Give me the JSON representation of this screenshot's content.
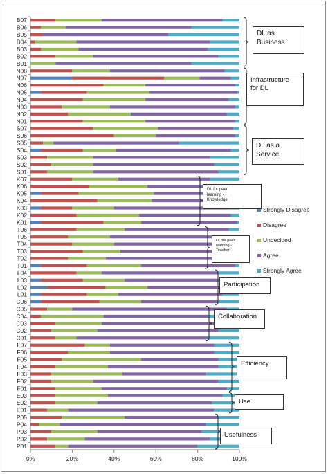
{
  "chart_data": {
    "type": "bar",
    "orientation": "horizontal",
    "stacked": true,
    "percent": true,
    "categories": [
      "B07",
      "B06",
      "B05",
      "B04",
      "B03",
      "B02",
      "B01",
      "N08",
      "N07",
      "N06",
      "N05",
      "N04",
      "N03",
      "N02",
      "N01",
      "S07",
      "S06",
      "S05",
      "S04",
      "S03",
      "S02",
      "S01",
      "K07",
      "K06",
      "K05",
      "K04",
      "K03",
      "K02",
      "K01",
      "T06",
      "T05",
      "T04",
      "T03",
      "T02",
      "T01",
      "L04",
      "L03",
      "L02",
      "L01",
      "C06",
      "C05",
      "C04",
      "C03",
      "C02",
      "C01",
      "F07",
      "F06",
      "F05",
      "F04",
      "F03",
      "F02",
      "F01",
      "E03",
      "E02",
      "E01",
      "P05",
      "P04",
      "P03",
      "P02",
      "P01"
    ],
    "series": [
      {
        "name": "Strongly Disagree",
        "color": "#4f81bd",
        "values": [
          0,
          0,
          0,
          0,
          0,
          0,
          0,
          0,
          20,
          0,
          5,
          0,
          0,
          0,
          0,
          0,
          0,
          0,
          5,
          0,
          0,
          0,
          0,
          0,
          5,
          0,
          5,
          0,
          5,
          0,
          0,
          0,
          0,
          0,
          5,
          0,
          5,
          8,
          5,
          5,
          0,
          0,
          0,
          0,
          0,
          0,
          0,
          0,
          0,
          0,
          0,
          0,
          0,
          0,
          0,
          0,
          0,
          0,
          0,
          0
        ]
      },
      {
        "name": "Disagree",
        "color": "#c0504d",
        "values": [
          12,
          5,
          6,
          2,
          5,
          12,
          0,
          20,
          44,
          35,
          22,
          25,
          15,
          18,
          25,
          30,
          40,
          6,
          20,
          8,
          10,
          8,
          20,
          28,
          18,
          32,
          15,
          22,
          30,
          22,
          18,
          20,
          25,
          18,
          22,
          22,
          20,
          28,
          22,
          28,
          8,
          5,
          12,
          10,
          12,
          26,
          18,
          15,
          12,
          10,
          10,
          12,
          12,
          12,
          8,
          15,
          4,
          10,
          8,
          12
        ]
      },
      {
        "name": "Undecided",
        "color": "#9bbb59",
        "values": [
          22,
          12,
          0,
          20,
          18,
          18,
          12,
          18,
          17,
          20,
          30,
          30,
          23,
          30,
          30,
          31,
          20,
          5,
          16,
          22,
          20,
          22,
          22,
          28,
          36,
          26,
          20,
          30,
          18,
          23,
          20,
          20,
          18,
          18,
          26,
          12,
          20,
          20,
          15,
          20,
          12,
          30,
          22,
          22,
          10,
          12,
          20,
          38,
          25,
          34,
          20,
          22,
          25,
          20,
          10,
          30,
          10,
          22,
          18,
          6
        ]
      },
      {
        "name": "Agree",
        "color": "#8064a2",
        "values": [
          58,
          60,
          60,
          64,
          62,
          60,
          65,
          55,
          15,
          43,
          42,
          40,
          60,
          46,
          43,
          36,
          38,
          60,
          55,
          56,
          58,
          60,
          44,
          38,
          38,
          36,
          55,
          44,
          46,
          50,
          57,
          58,
          52,
          60,
          45,
          56,
          45,
          35,
          50,
          37,
          74,
          50,
          60,
          58,
          63,
          50,
          50,
          37,
          53,
          40,
          60,
          60,
          55,
          55,
          70,
          45,
          70,
          50,
          60,
          62
        ]
      },
      {
        "name": "Strongly Agree",
        "color": "#4bacc6",
        "values": [
          8,
          23,
          34,
          14,
          15,
          10,
          23,
          7,
          4,
          2,
          1,
          5,
          2,
          6,
          2,
          3,
          2,
          29,
          4,
          14,
          12,
          10,
          14,
          6,
          3,
          6,
          5,
          4,
          1,
          5,
          5,
          2,
          5,
          4,
          2,
          10,
          10,
          9,
          8,
          10,
          6,
          15,
          6,
          10,
          15,
          12,
          12,
          10,
          10,
          16,
          10,
          6,
          8,
          13,
          12,
          10,
          16,
          18,
          14,
          20
        ]
      }
    ],
    "xlim": [
      0,
      100
    ],
    "xticks": [
      "0%",
      "20%",
      "40%",
      "60%",
      "80%",
      "100%"
    ],
    "legend_position": "right",
    "groups": [
      {
        "label_lines": [
          "DL as",
          "Business"
        ],
        "from": "B07",
        "to": "B01"
      },
      {
        "label_lines": [
          "Infrastructure",
          "for DL"
        ],
        "from": "N08",
        "to": "N01"
      },
      {
        "label_lines": [
          "DL as    a",
          "Service"
        ],
        "from": "S07",
        "to": "S01"
      },
      {
        "label_lines": [
          "DL for peer",
          "learning -",
          "Knowledge"
        ],
        "from": "K07",
        "to": "K01"
      },
      {
        "label_lines": [
          "DL for peer",
          "learning -",
          "Teacher"
        ],
        "from": "T06",
        "to": "T01"
      },
      {
        "label_lines": [
          "Participation"
        ],
        "from": "L04",
        "to": "C06"
      },
      {
        "label_lines": [
          "Collaboration"
        ],
        "from": "C05",
        "to": "C01"
      },
      {
        "label_lines": [
          "Efficiency"
        ],
        "from": "F07",
        "to": "F01"
      },
      {
        "label_lines": [
          "Use"
        ],
        "from": "E03",
        "to": "E01"
      },
      {
        "label_lines": [
          "Usefulness"
        ],
        "from": "P05",
        "to": "P01"
      }
    ]
  }
}
